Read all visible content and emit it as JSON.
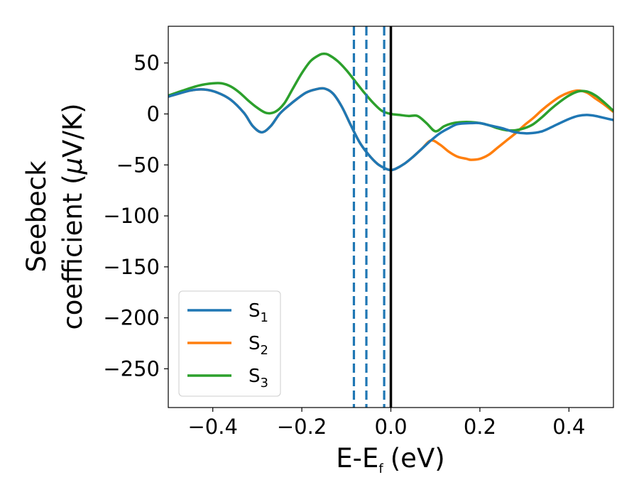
{
  "chart_data": {
    "type": "line",
    "title": "",
    "xlabel": "E-E",
    "xlabel_sub": "f",
    "xlabel_unit": "(eV)",
    "ylabel_line1": "Seebeck",
    "ylabel_line2_prefix": "coefficient  (",
    "ylabel_mu": "μ",
    "ylabel_line2_suffix": "V/K)",
    "xlim": [
      -0.5,
      0.5
    ],
    "ylim": [
      -288,
      86
    ],
    "xticks": [
      -0.4,
      -0.2,
      0.0,
      0.2,
      0.4
    ],
    "xtick_labels": [
      "−0.4",
      "−0.2",
      "0.0",
      "0.2",
      "0.4"
    ],
    "yticks": [
      50,
      0,
      -50,
      -100,
      -150,
      -200,
      -250
    ],
    "ytick_labels": [
      "50",
      "0",
      "−50",
      "−100",
      "−150",
      "−200",
      "−250"
    ],
    "grid": false,
    "legend_position": "lower-left",
    "series": [
      {
        "name_base": "S",
        "name_sub": "1",
        "color": "#1f77b4",
        "x": [
          -0.5,
          -0.45,
          -0.42,
          -0.39,
          -0.36,
          -0.33,
          -0.31,
          -0.29,
          -0.27,
          -0.25,
          -0.23,
          -0.21,
          -0.19,
          -0.17,
          -0.15,
          -0.13,
          -0.11,
          -0.09,
          -0.07,
          -0.05,
          -0.03,
          -0.01,
          0.0,
          0.01,
          0.03,
          0.05,
          0.07,
          0.09,
          0.11,
          0.13,
          0.15,
          0.18,
          0.2,
          0.22,
          0.25,
          0.28,
          0.31,
          0.34,
          0.37,
          0.4,
          0.42,
          0.44,
          0.46,
          0.48,
          0.5
        ],
        "y": [
          17,
          23,
          24,
          21,
          14,
          1,
          -12,
          -18,
          -12,
          0,
          8,
          15,
          21,
          24,
          25,
          20,
          7,
          -11,
          -28,
          -40,
          -49,
          -54,
          -55,
          -54,
          -49,
          -42,
          -34,
          -26,
          -19,
          -14,
          -10,
          -9,
          -9,
          -11,
          -14,
          -18,
          -19,
          -17,
          -11,
          -5,
          -2,
          -1,
          -2,
          -4,
          -6
        ]
      },
      {
        "name_base": "S",
        "name_sub": "2",
        "color": "#ff7f0e",
        "x": [
          -0.5,
          -0.45,
          -0.42,
          -0.39,
          -0.36,
          -0.33,
          -0.31,
          -0.29,
          -0.27,
          -0.25,
          -0.23,
          -0.21,
          -0.19,
          -0.17,
          -0.15,
          -0.13,
          -0.11,
          -0.09,
          -0.07,
          -0.05,
          -0.03,
          -0.01,
          0.0,
          0.01,
          0.03,
          0.05,
          0.07,
          0.09,
          0.11,
          0.13,
          0.15,
          0.17,
          0.18,
          0.2,
          0.22,
          0.24,
          0.26,
          0.28,
          0.3,
          0.32,
          0.34,
          0.36,
          0.38,
          0.4,
          0.42,
          0.44,
          0.46,
          0.48,
          0.5
        ],
        "y": [
          17,
          23,
          24,
          21,
          14,
          1,
          -12,
          -18,
          -12,
          0,
          8,
          15,
          21,
          24,
          25,
          20,
          7,
          -11,
          -28,
          -40,
          -49,
          -54,
          -55,
          -54,
          -49,
          -42,
          -34,
          -26,
          -30,
          -37,
          -42,
          -44,
          -45,
          -44,
          -40,
          -33,
          -26,
          -19,
          -11,
          -4,
          4,
          11,
          17,
          21,
          23,
          21,
          15,
          9,
          2
        ]
      },
      {
        "name_base": "S",
        "name_sub": "3",
        "color": "#2ca02c",
        "x": [
          -0.5,
          -0.46,
          -0.43,
          -0.4,
          -0.38,
          -0.36,
          -0.34,
          -0.32,
          -0.3,
          -0.28,
          -0.26,
          -0.24,
          -0.22,
          -0.2,
          -0.18,
          -0.16,
          -0.15,
          -0.14,
          -0.12,
          -0.1,
          -0.08,
          -0.06,
          -0.04,
          -0.02,
          0.0,
          0.02,
          0.04,
          0.06,
          0.08,
          0.1,
          0.12,
          0.14,
          0.16,
          0.18,
          0.2,
          0.22,
          0.24,
          0.26,
          0.28,
          0.3,
          0.32,
          0.34,
          0.36,
          0.38,
          0.4,
          0.42,
          0.44,
          0.46,
          0.48,
          0.5
        ],
        "y": [
          18,
          24,
          28,
          30,
          30,
          27,
          21,
          13,
          6,
          1,
          2,
          10,
          25,
          40,
          52,
          58,
          59,
          58,
          52,
          43,
          32,
          21,
          11,
          3,
          0,
          -1,
          -2,
          -2,
          -9,
          -17,
          -12,
          -9,
          -8,
          -8,
          -9,
          -11,
          -14,
          -16,
          -16,
          -14,
          -10,
          -3,
          5,
          12,
          18,
          22,
          22,
          18,
          11,
          3
        ]
      }
    ],
    "vlines": [
      {
        "x": -0.083,
        "style": "dashed",
        "color": "#1f77b4"
      },
      {
        "x": -0.055,
        "style": "dashed",
        "color": "#1f77b4"
      },
      {
        "x": -0.015,
        "style": "dashed",
        "color": "#1f77b4"
      },
      {
        "x": 0.0,
        "style": "solid",
        "color": "#000000"
      }
    ]
  }
}
